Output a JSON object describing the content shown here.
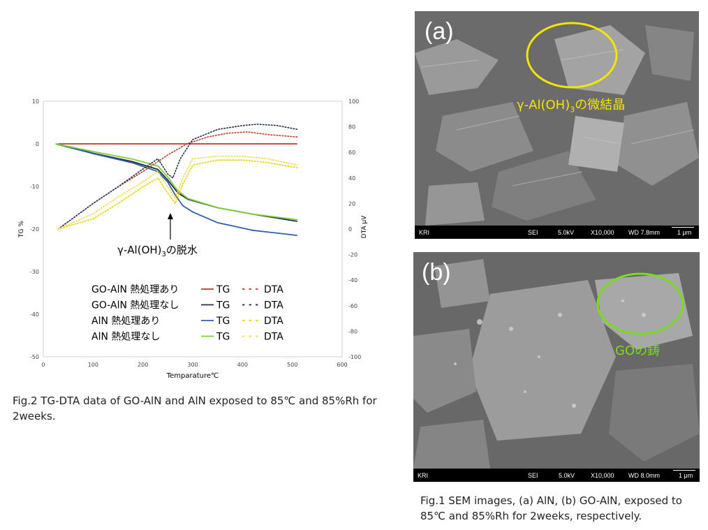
{
  "chart_data": {
    "type": "line",
    "xlabel": "Temparature℃",
    "ylabel_left": "TG %",
    "ylabel_right": "DTA μV",
    "xlim": [
      0,
      600
    ],
    "ylim_left": [
      -50,
      10
    ],
    "ylim_right": [
      -100,
      100
    ],
    "x_ticks": [
      "0",
      "100",
      "200",
      "300",
      "400",
      "500",
      "600"
    ],
    "y_left_ticks": [
      "10",
      "0",
      "-10",
      "-20",
      "-30",
      "-40",
      "-50"
    ],
    "y_right_ticks": [
      "100",
      "80",
      "60",
      "40",
      "20",
      "0",
      "-20",
      "-40",
      "-60",
      "-80",
      "-100"
    ],
    "annotation_text": "γ-Al(OH)",
    "annotation_sub": "3",
    "annotation_tail": "の脱水",
    "series": [
      {
        "name": "GO-AlN 熱処理あり",
        "kind": "TG",
        "axis": "left",
        "color": "#c0392b",
        "style": "solid",
        "x": [
          30,
          100,
          200,
          300,
          400,
          510
        ],
        "y": [
          0,
          0,
          0,
          0,
          0,
          0
        ]
      },
      {
        "name": "GO-AlN 熱処理なし",
        "kind": "TG",
        "axis": "left",
        "color": "#1f2e45",
        "style": "solid",
        "x": [
          25,
          100,
          180,
          230,
          250,
          270,
          290,
          350,
          420,
          510
        ],
        "y": [
          0,
          -2.2,
          -4.2,
          -6,
          -8.5,
          -11.5,
          -13,
          -15,
          -16.5,
          -18.2
        ]
      },
      {
        "name": "AlN 熱処理あり",
        "kind": "TG",
        "axis": "left",
        "color": "#2e5fa8",
        "style": "solid",
        "x": [
          25,
          100,
          180,
          230,
          250,
          265,
          280,
          300,
          350,
          420,
          510
        ],
        "y": [
          0,
          -2.3,
          -4.5,
          -6.5,
          -9,
          -12,
          -14.5,
          -16,
          -18.5,
          -20.3,
          -21.5
        ]
      },
      {
        "name": "AlN 熱処理なし",
        "kind": "TG",
        "axis": "left",
        "color": "#7ccc3c",
        "style": "solid",
        "x": [
          25,
          100,
          180,
          230,
          250,
          270,
          290,
          350,
          420,
          510
        ],
        "y": [
          0,
          -1.8,
          -3.6,
          -5.2,
          -7.8,
          -11,
          -12.8,
          -15,
          -16.5,
          -17.8
        ]
      },
      {
        "name": "GO-AlN 熱処理あり",
        "kind": "DTA",
        "axis": "right",
        "color": "#c0392b",
        "style": "dotted",
        "x": [
          30,
          100,
          150,
          200,
          250,
          290,
          330,
          370,
          410,
          450,
          510
        ],
        "y": [
          0,
          20,
          33,
          45,
          58,
          67,
          72,
          75,
          76,
          74,
          72
        ]
      },
      {
        "name": "GO-AlN 熱処理なし",
        "kind": "DTA",
        "axis": "right",
        "color": "#1f2e45",
        "style": "dotted",
        "x": [
          30,
          100,
          150,
          200,
          230,
          250,
          260,
          275,
          300,
          350,
          400,
          430,
          470,
          510
        ],
        "y": [
          0,
          20,
          33,
          47,
          55,
          43,
          40,
          55,
          70,
          78,
          81,
          82,
          81,
          78
        ]
      },
      {
        "name": "AlN 熱処理あり",
        "kind": "DTA",
        "axis": "right",
        "color": "#e6d200",
        "style": "dotted",
        "x": [
          30,
          100,
          150,
          200,
          230,
          250,
          265,
          280,
          300,
          350,
          400,
          450,
          510
        ],
        "y": [
          0,
          8,
          20,
          33,
          40,
          28,
          20,
          35,
          50,
          54,
          54,
          52,
          48
        ]
      },
      {
        "name": "AlN 熱処理なし",
        "kind": "DTA",
        "axis": "right",
        "color": "#f4d94a",
        "style": "dotted",
        "x": [
          30,
          100,
          150,
          200,
          230,
          250,
          265,
          280,
          300,
          350,
          400,
          450,
          510
        ],
        "y": [
          0,
          12,
          25,
          37,
          45,
          33,
          24,
          40,
          55,
          57,
          57,
          55,
          50
        ]
      }
    ],
    "legend": {
      "rows": [
        {
          "label": "GO-AlN 熱処理あり",
          "tg": "TG",
          "dta": "DTA",
          "color": "#c0392b"
        },
        {
          "label": "GO-AlN 熱処理なし",
          "tg": "TG",
          "dta": "DTA",
          "color": "#1f2e45"
        },
        {
          "label": "AlN 熱処理あり",
          "tg": "TG",
          "dta": "DTA",
          "color": "#2e5fa8"
        },
        {
          "label": "AlN 熱処理なし",
          "tg": "TG",
          "dta": "DTA",
          "color": "#7ccc3c"
        }
      ],
      "placement": "lower-center"
    },
    "grid": false
  },
  "fig2_caption": "Fig.2 TG-DTA data of GO-AlN and AlN exposed to 85℃ and 85%Rh for 2weeks.",
  "fig1_caption": "Fig.1 SEM images, (a) AlN, (b) GO-AlN, exposed to 85℃ and 85%Rh for 2weeks, respectively.",
  "sem_a": {
    "label": "(a)",
    "annotation_main": "γ-Al(OH)",
    "annotation_sub": "3",
    "annotation_tail": "の微結晶",
    "annotation_color": "#f2e600",
    "bar": {
      "left": "KRI",
      "mode": "SEI",
      "kv": "5.0kV",
      "mag": "X10,000",
      "wd": "WD 7.8mm",
      "scale": "1 μm"
    }
  },
  "sem_b": {
    "label": "(b)",
    "annotation": "GOの鋳",
    "annotation_color": "#7bdc1e",
    "bar": {
      "left": "KRI",
      "mode": "SEI",
      "kv": "5.0kV",
      "mag": "X10,000",
      "wd": "WD 8.0mm",
      "scale": "1 μm"
    }
  }
}
